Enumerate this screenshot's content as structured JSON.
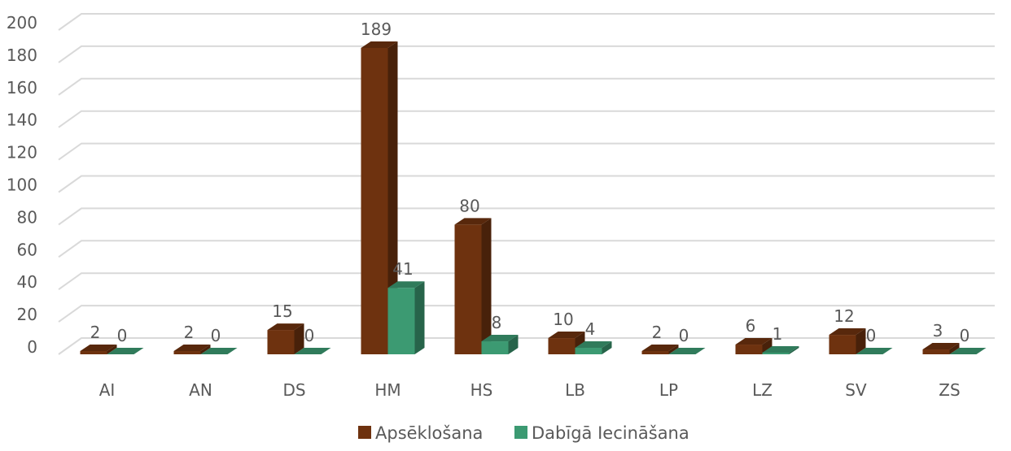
{
  "chart_data": {
    "type": "bar",
    "categories": [
      "AI",
      "AN",
      "DS",
      "HM",
      "HS",
      "LB",
      "LP",
      "LZ",
      "SV",
      "ZS"
    ],
    "series": [
      {
        "name": "Apsēklošana",
        "values": [
          2,
          2,
          15,
          189,
          80,
          10,
          2,
          6,
          12,
          3
        ],
        "color": "#6e320f"
      },
      {
        "name": "Dabīgā Iecināšana",
        "values": [
          0,
          0,
          0,
          41,
          8,
          4,
          0,
          1,
          0,
          0
        ],
        "color": "#3c9a72"
      }
    ],
    "title": "",
    "xlabel": "",
    "ylabel": "",
    "ylim": [
      0,
      200
    ],
    "yticks": [
      0,
      20,
      40,
      60,
      80,
      100,
      120,
      140,
      160,
      180,
      200
    ],
    "grid": true,
    "legend": "bottom",
    "style": "3d-clustered-column",
    "colors": {
      "gridline": "#d9d9d9",
      "text": "#595959"
    }
  }
}
